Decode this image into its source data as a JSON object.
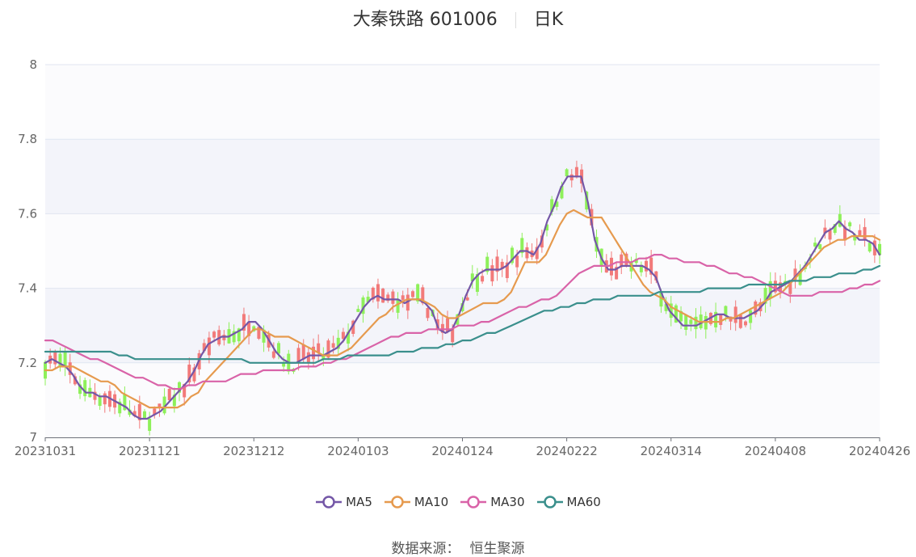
{
  "title": {
    "name": "大秦铁路 601006",
    "period": "日K"
  },
  "source": {
    "label": "数据来源：",
    "name": "恒生聚源"
  },
  "colors": {
    "up": "#f27a7a",
    "down": "#8ef05a",
    "MA5": "#7457a7",
    "MA10": "#e69a4e",
    "MA30": "#d963a8",
    "MA60": "#3a8f8c",
    "band": "#f3f4fa",
    "grid": "#e0e6f1",
    "axis": "#6e7079"
  },
  "chart_data": {
    "type": "candlestick",
    "ylim": [
      7,
      8
    ],
    "yticks": [
      "7",
      "7.2",
      "7.4",
      "7.6",
      "7.8",
      "8"
    ],
    "xticks": [
      "20231031",
      "20231121",
      "20231212",
      "20240103",
      "20240124",
      "20240222",
      "20240314",
      "20240408",
      "20240426"
    ],
    "xtick_index": [
      0,
      21,
      42,
      63,
      84,
      105,
      126,
      147,
      168
    ],
    "grid": true,
    "legend_position": "bottom",
    "series": [
      {
        "name": "MA5",
        "values": [
          7.2,
          7.21,
          7.2,
          7.19,
          7.17,
          7.14,
          7.12,
          7.12,
          7.11,
          7.11,
          7.1,
          7.09,
          7.08,
          7.06,
          7.05,
          7.05,
          7.06,
          7.07,
          7.09,
          7.11,
          7.13,
          7.15,
          7.18,
          7.22,
          7.25,
          7.26,
          7.27,
          7.27,
          7.28,
          7.29,
          7.31,
          7.31,
          7.29,
          7.26,
          7.23,
          7.21,
          7.2,
          7.2,
          7.21,
          7.22,
          7.22,
          7.22,
          7.23,
          7.24,
          7.26,
          7.29,
          7.32,
          7.35,
          7.37,
          7.38,
          7.37,
          7.37,
          7.37,
          7.36,
          7.37,
          7.37,
          7.36,
          7.34,
          7.29,
          7.28,
          7.29,
          7.33,
          7.38,
          7.42,
          7.44,
          7.45,
          7.45,
          7.45,
          7.46,
          7.48,
          7.5,
          7.5,
          7.49,
          7.52,
          7.58,
          7.62,
          7.67,
          7.7,
          7.7,
          7.7,
          7.63,
          7.53,
          7.48,
          7.45,
          7.45,
          7.46,
          7.46,
          7.46,
          7.46,
          7.45,
          7.43,
          7.38,
          7.34,
          7.32,
          7.3,
          7.3,
          7.3,
          7.31,
          7.32,
          7.33,
          7.33,
          7.32,
          7.32,
          7.32,
          7.33,
          7.34,
          7.36,
          7.39,
          7.4,
          7.41,
          7.42,
          7.44,
          7.46,
          7.49,
          7.52,
          7.55,
          7.56,
          7.58,
          7.56,
          7.55,
          7.53,
          7.53,
          7.52,
          7.49
        ]
      },
      {
        "name": "MA10",
        "values": [
          7.18,
          7.18,
          7.19,
          7.19,
          7.19,
          7.18,
          7.17,
          7.16,
          7.15,
          7.15,
          7.14,
          7.12,
          7.11,
          7.1,
          7.09,
          7.08,
          7.08,
          7.08,
          7.08,
          7.08,
          7.09,
          7.11,
          7.12,
          7.15,
          7.17,
          7.19,
          7.21,
          7.23,
          7.25,
          7.27,
          7.29,
          7.29,
          7.28,
          7.27,
          7.27,
          7.27,
          7.26,
          7.25,
          7.24,
          7.23,
          7.22,
          7.22,
          7.22,
          7.23,
          7.24,
          7.26,
          7.28,
          7.3,
          7.32,
          7.33,
          7.35,
          7.36,
          7.37,
          7.37,
          7.37,
          7.36,
          7.35,
          7.33,
          7.32,
          7.32,
          7.33,
          7.34,
          7.35,
          7.36,
          7.36,
          7.36,
          7.37,
          7.39,
          7.43,
          7.47,
          7.47,
          7.47,
          7.49,
          7.53,
          7.57,
          7.6,
          7.61,
          7.6,
          7.59,
          7.59,
          7.59,
          7.56,
          7.53,
          7.5,
          7.47,
          7.44,
          7.41,
          7.39,
          7.38,
          7.37,
          7.35,
          7.34,
          7.33,
          7.32,
          7.31,
          7.31,
          7.31,
          7.31,
          7.32,
          7.32,
          7.33,
          7.34,
          7.35,
          7.36,
          7.37,
          7.38,
          7.39,
          7.41,
          7.43,
          7.45,
          7.47,
          7.49,
          7.51,
          7.52,
          7.53,
          7.53,
          7.54,
          7.54,
          7.54,
          7.54,
          7.53
        ]
      },
      {
        "name": "MA30",
        "values": [
          7.26,
          7.26,
          7.25,
          7.24,
          7.23,
          7.22,
          7.21,
          7.21,
          7.2,
          7.19,
          7.18,
          7.17,
          7.16,
          7.16,
          7.15,
          7.14,
          7.14,
          7.13,
          7.13,
          7.14,
          7.14,
          7.15,
          7.15,
          7.15,
          7.15,
          7.16,
          7.17,
          7.17,
          7.17,
          7.18,
          7.18,
          7.18,
          7.18,
          7.18,
          7.19,
          7.19,
          7.19,
          7.2,
          7.2,
          7.21,
          7.21,
          7.22,
          7.23,
          7.24,
          7.25,
          7.26,
          7.27,
          7.27,
          7.28,
          7.28,
          7.28,
          7.29,
          7.29,
          7.29,
          7.29,
          7.3,
          7.3,
          7.3,
          7.31,
          7.31,
          7.32,
          7.33,
          7.34,
          7.35,
          7.35,
          7.36,
          7.37,
          7.37,
          7.38,
          7.4,
          7.42,
          7.44,
          7.45,
          7.46,
          7.46,
          7.46,
          7.47,
          7.47,
          7.47,
          7.48,
          7.48,
          7.49,
          7.49,
          7.48,
          7.48,
          7.47,
          7.47,
          7.47,
          7.46,
          7.46,
          7.45,
          7.44,
          7.44,
          7.43,
          7.43,
          7.42,
          7.41,
          7.4,
          7.39,
          7.38,
          7.38,
          7.38,
          7.38,
          7.39,
          7.39,
          7.39,
          7.39,
          7.4,
          7.4,
          7.41,
          7.41,
          7.42
        ]
      },
      {
        "name": "MA60",
        "values": [
          7.23,
          7.23,
          7.23,
          7.23,
          7.23,
          7.23,
          7.23,
          7.23,
          7.23,
          7.22,
          7.22,
          7.21,
          7.21,
          7.21,
          7.21,
          7.21,
          7.21,
          7.21,
          7.21,
          7.21,
          7.21,
          7.21,
          7.21,
          7.21,
          7.21,
          7.2,
          7.2,
          7.2,
          7.2,
          7.2,
          7.2,
          7.2,
          7.2,
          7.2,
          7.21,
          7.21,
          7.21,
          7.22,
          7.22,
          7.22,
          7.22,
          7.22,
          7.22,
          7.23,
          7.23,
          7.23,
          7.24,
          7.24,
          7.24,
          7.25,
          7.25,
          7.26,
          7.26,
          7.27,
          7.28,
          7.28,
          7.29,
          7.3,
          7.31,
          7.32,
          7.33,
          7.34,
          7.34,
          7.35,
          7.35,
          7.36,
          7.36,
          7.37,
          7.37,
          7.37,
          7.38,
          7.38,
          7.38,
          7.38,
          7.38,
          7.39,
          7.39,
          7.39,
          7.39,
          7.39,
          7.39,
          7.4,
          7.4,
          7.4,
          7.4,
          7.4,
          7.41,
          7.41,
          7.41,
          7.41,
          7.41,
          7.42,
          7.42,
          7.42,
          7.43,
          7.43,
          7.43,
          7.44,
          7.44,
          7.44,
          7.45,
          7.45,
          7.46
        ]
      }
    ]
  },
  "legend": [
    {
      "label": "MA5",
      "color": "#7457a7"
    },
    {
      "label": "MA10",
      "color": "#e69a4e"
    },
    {
      "label": "MA30",
      "color": "#d963a8"
    },
    {
      "label": "MA60",
      "color": "#3a8f8c"
    }
  ]
}
